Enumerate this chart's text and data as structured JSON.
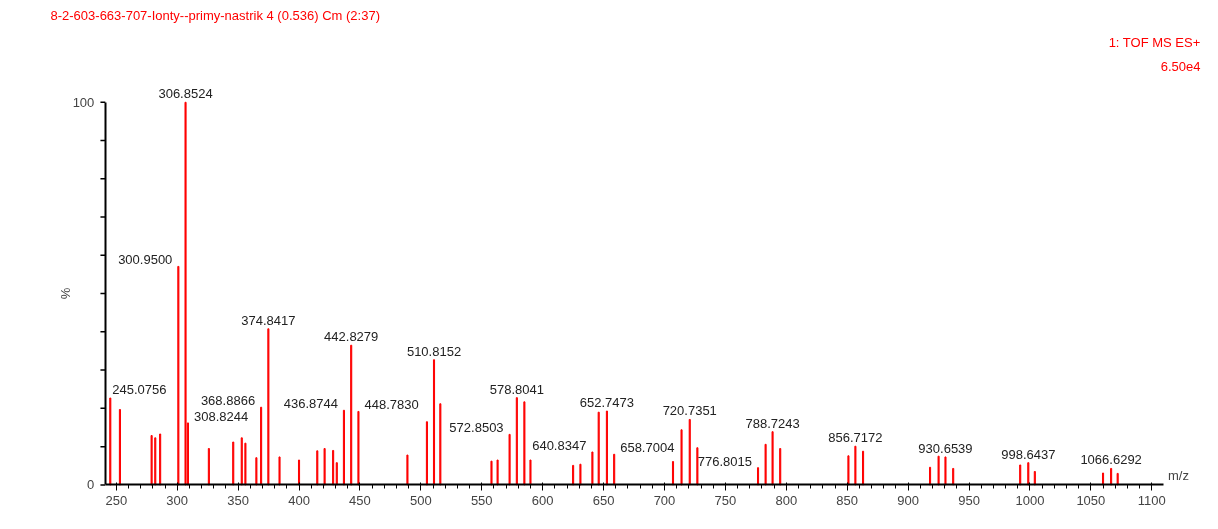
{
  "chart_data": {
    "type": "bar",
    "title": "8-2-603-663-707-Ionty--primy-nastrik 4 (0.536) Cm (2:37)",
    "xlabel": "m/z",
    "ylabel": "%",
    "color": "#ff0000",
    "x": [
      245.0756,
      253,
      279,
      282,
      286,
      300.95,
      306.8524,
      308.8244,
      326,
      346,
      353,
      356,
      365,
      368.8866,
      374.8417,
      384,
      400,
      415,
      421,
      428,
      431,
      436.8744,
      442.8279,
      448.783,
      489,
      505,
      510.8152,
      516,
      558,
      563,
      572.8503,
      578.8041,
      585,
      590,
      625,
      631,
      640.8347,
      646,
      652.7473,
      658.7004,
      707,
      714,
      720.7351,
      727,
      776.8015,
      783,
      788.7243,
      795,
      851,
      856.7172,
      863,
      918,
      925,
      930.6539,
      937,
      992,
      998.6437,
      1004,
      1060,
      1066.6292,
      1072
    ],
    "values": [
      22.7,
      19.7,
      12.9,
      12.3,
      13.3,
      57.1,
      100,
      16.2,
      9.5,
      11.2,
      12.3,
      10.9,
      7.1,
      20.3,
      40.8,
      7.3,
      6.5,
      8.9,
      9.5,
      9.0,
      5.8,
      19.5,
      36.5,
      19.2,
      7.8,
      16.5,
      32.7,
      21.2,
      6.2,
      6.5,
      13.2,
      22.8,
      21.7,
      6.5,
      5.1,
      5.4,
      8.6,
      19.0,
      19.3,
      8.0,
      6.1,
      14.4,
      17.1,
      9.7,
      4.5,
      10.6,
      13.9,
      9.5,
      7.6,
      10.1,
      8.8,
      4.6,
      7.5,
      7.3,
      4.3,
      5.2,
      5.8,
      3.5,
      3.1,
      4.3,
      3.0
    ],
    "xlim": [
      241,
      1110
    ],
    "ylim": [
      0,
      100
    ],
    "xticks": [
      250,
      300,
      350,
      400,
      450,
      500,
      550,
      600,
      650,
      700,
      750,
      800,
      850,
      900,
      950,
      1000,
      1050,
      1100
    ],
    "yticks": [
      0,
      {
        "value": 10,
        "label": null
      },
      {
        "value": 20,
        "label": null
      },
      {
        "value": 30,
        "label": null
      },
      {
        "value": 40,
        "label": null
      },
      {
        "value": 50,
        "label": null
      },
      {
        "value": 60,
        "label": null
      },
      {
        "value": 70,
        "label": null
      },
      {
        "value": 80,
        "label": null
      },
      {
        "value": 90,
        "label": null
      },
      100
    ],
    "grid": false,
    "annotations": [
      "1: TOF MS ES+",
      "6.50e4",
      {
        "text": "245.0756",
        "x": 245.0756,
        "y": 22.7
      },
      {
        "text": "300.9500",
        "x": 300.95,
        "y": 57.1
      },
      {
        "text": "306.8524",
        "x": 306.8524,
        "y": 100
      },
      {
        "text": "308.8244",
        "x": 308.8244,
        "y": 16.2
      },
      {
        "text": "368.8866",
        "x": 368.8866,
        "y": 20.3
      },
      {
        "text": "374.8417",
        "x": 374.8417,
        "y": 40.8
      },
      {
        "text": "436.8744",
        "x": 436.8744,
        "y": 19.5
      },
      {
        "text": "442.8279",
        "x": 442.8279,
        "y": 36.5
      },
      {
        "text": "448.7830",
        "x": 448.783,
        "y": 19.2
      },
      {
        "text": "510.8152",
        "x": 510.8152,
        "y": 32.7
      },
      {
        "text": "572.8503",
        "x": 572.8503,
        "y": 13.2
      },
      {
        "text": "578.8041",
        "x": 578.8041,
        "y": 22.8
      },
      {
        "text": "640.8347",
        "x": 640.8347,
        "y": 8.6
      },
      {
        "text": "652.7473",
        "x": 652.7473,
        "y": 19.3
      },
      {
        "text": "658.7004",
        "x": 658.7004,
        "y": 8.0
      },
      {
        "text": "720.7351",
        "x": 720.7351,
        "y": 17.1
      },
      {
        "text": "776.8015",
        "x": 776.8015,
        "y": 4.5
      },
      {
        "text": "788.7243",
        "x": 788.7243,
        "y": 13.9
      },
      {
        "text": "856.7172",
        "x": 856.7172,
        "y": 10.1
      },
      {
        "text": "930.6539",
        "x": 930.6539,
        "y": 7.3
      },
      {
        "text": "998.6437",
        "x": 998.6437,
        "y": 5.8
      },
      {
        "text": "1066.6292",
        "x": 1066.6292,
        "y": 4.3
      }
    ]
  }
}
